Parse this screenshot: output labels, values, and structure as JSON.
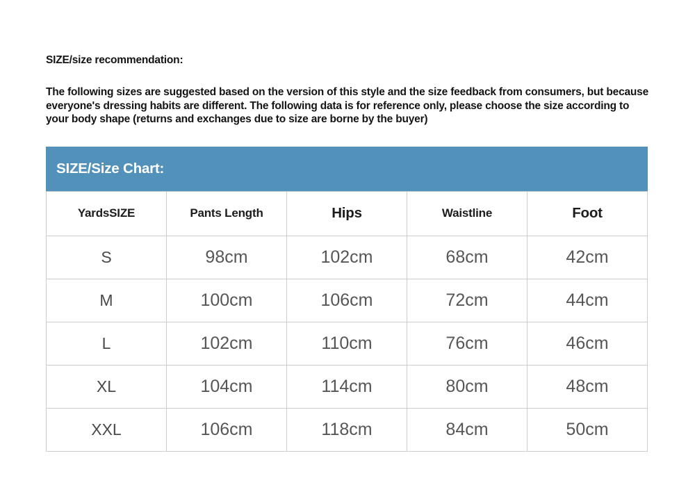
{
  "recommendation": {
    "heading": "SIZE/size recommendation:",
    "body": "The following sizes are suggested based on the version of this style and the size feedback from consumers, but because everyone's dressing habits are different. The following data is for reference only, please choose the size according to your body shape (returns and exchanges due to size are borne by the buyer)"
  },
  "size_chart": {
    "title": "SIZE/Size Chart:",
    "title_bar_color": "#5292ba",
    "border_color": "#cdcdcd",
    "columns": [
      "YardsSIZE",
      "Pants Length",
      "Hips",
      "Waistline",
      "Foot"
    ],
    "rows": [
      [
        "S",
        "98cm",
        "102cm",
        "68cm",
        "42cm"
      ],
      [
        "M",
        "100cm",
        "106cm",
        "72cm",
        "44cm"
      ],
      [
        "L",
        "102cm",
        "110cm",
        "76cm",
        "46cm"
      ],
      [
        "XL",
        "104cm",
        "114cm",
        "80cm",
        "48cm"
      ],
      [
        "XXL",
        "106cm",
        "118cm",
        "84cm",
        "50cm"
      ]
    ]
  },
  "chart_data": {
    "type": "table",
    "title": "SIZE/Size Chart:",
    "columns": [
      "YardsSIZE",
      "Pants Length",
      "Hips",
      "Waistline",
      "Foot"
    ],
    "rows": [
      [
        "S",
        "98cm",
        "102cm",
        "68cm",
        "42cm"
      ],
      [
        "M",
        "100cm",
        "106cm",
        "72cm",
        "44cm"
      ],
      [
        "L",
        "102cm",
        "110cm",
        "76cm",
        "46cm"
      ],
      [
        "XL",
        "104cm",
        "114cm",
        "80cm",
        "48cm"
      ],
      [
        "XXL",
        "106cm",
        "118cm",
        "84cm",
        "50cm"
      ]
    ]
  }
}
